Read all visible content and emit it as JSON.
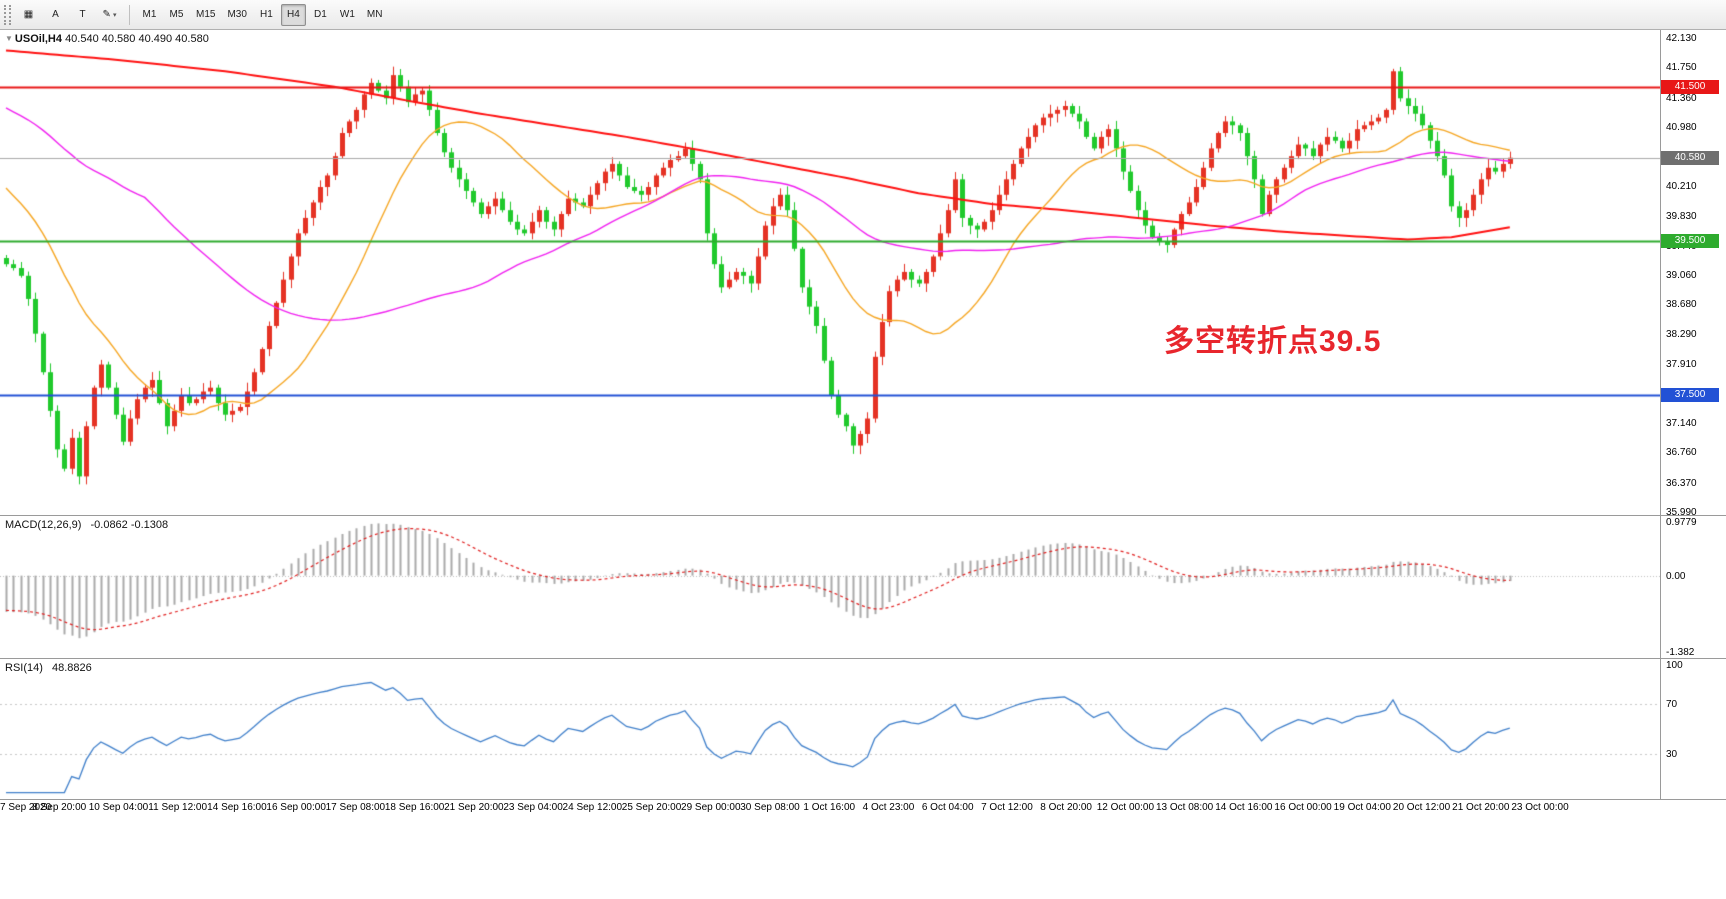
{
  "toolbar": {
    "tools": [
      {
        "name": "charts-grid-icon",
        "glyph": "▦"
      },
      {
        "name": "arrow-tool-button",
        "glyph": "A"
      },
      {
        "name": "text-tool-button",
        "glyph": "T"
      },
      {
        "name": "draw-tool-button",
        "glyph": "✎",
        "caret": true
      }
    ],
    "timeframes": [
      "M1",
      "M5",
      "M15",
      "M30",
      "H1",
      "H4",
      "D1",
      "W1",
      "MN"
    ],
    "active_timeframe": "H4"
  },
  "chart": {
    "symbol": "USOil,H4",
    "ohlc_text": "40.540 40.580 40.490 40.580",
    "annotation": {
      "text": "多空转折点39.5",
      "color": "#e8262d"
    },
    "levels": [
      {
        "label": "41.500",
        "price": 41.5,
        "color": "#e81717"
      },
      {
        "label": "39.500",
        "price": 39.5,
        "color": "#2eab2e"
      },
      {
        "label": "37.500",
        "price": 37.5,
        "color": "#2251d5"
      }
    ],
    "current_price": {
      "label": "40.580",
      "value": 40.58,
      "color": "#6f6f6f"
    },
    "axis_ticks": [
      "42.130",
      "41.750",
      "41.360",
      "40.980",
      "40.210",
      "39.830",
      "39.440",
      "39.060",
      "38.680",
      "38.290",
      "37.910",
      "37.140",
      "36.760",
      "36.370",
      "35.990"
    ],
    "price_range": {
      "max": 42.235,
      "min": 35.95
    }
  },
  "chart_data": {
    "type": "candlestick",
    "symbol": "USOil",
    "timeframe": "H4",
    "closes": [
      39.2,
      39.15,
      39.05,
      38.75,
      38.3,
      37.8,
      37.3,
      36.8,
      36.55,
      36.95,
      36.45,
      37.1,
      37.6,
      37.9,
      37.6,
      37.25,
      36.9,
      37.2,
      37.45,
      37.6,
      37.7,
      37.4,
      37.1,
      37.3,
      37.5,
      37.4,
      37.45,
      37.55,
      37.6,
      37.4,
      37.25,
      37.3,
      37.35,
      37.55,
      37.8,
      38.1,
      38.4,
      38.7,
      39.0,
      39.3,
      39.6,
      39.8,
      40.0,
      40.2,
      40.35,
      40.6,
      40.9,
      41.05,
      41.2,
      41.4,
      41.55,
      41.45,
      41.35,
      41.65,
      41.5,
      41.3,
      41.4,
      41.45,
      41.2,
      40.9,
      40.65,
      40.45,
      40.3,
      40.15,
      40.0,
      39.85,
      39.95,
      40.05,
      39.9,
      39.75,
      39.65,
      39.6,
      39.75,
      39.9,
      39.75,
      39.65,
      39.85,
      40.05,
      40.0,
      39.95,
      40.1,
      40.25,
      40.4,
      40.5,
      40.35,
      40.2,
      40.15,
      40.1,
      40.2,
      40.35,
      40.45,
      40.55,
      40.6,
      40.7,
      40.5,
      40.3,
      39.6,
      39.2,
      38.9,
      39.0,
      39.1,
      39.05,
      38.95,
      39.3,
      39.7,
      39.95,
      40.1,
      39.9,
      39.4,
      38.9,
      38.65,
      38.4,
      37.95,
      37.5,
      37.25,
      37.1,
      36.85,
      37.0,
      37.2,
      38.0,
      38.45,
      38.85,
      39.0,
      39.1,
      39.0,
      38.95,
      39.1,
      39.3,
      39.6,
      39.9,
      40.3,
      39.8,
      39.7,
      39.65,
      39.75,
      39.9,
      40.1,
      40.3,
      40.5,
      40.7,
      40.85,
      41.0,
      41.1,
      41.15,
      41.2,
      41.25,
      41.15,
      41.05,
      40.85,
      40.7,
      40.85,
      40.95,
      40.7,
      40.4,
      40.15,
      39.9,
      39.7,
      39.55,
      39.5,
      39.45,
      39.65,
      39.85,
      40.0,
      40.2,
      40.45,
      40.7,
      40.9,
      41.05,
      41.0,
      40.9,
      40.6,
      40.3,
      39.85,
      40.1,
      40.3,
      40.45,
      40.6,
      40.75,
      40.7,
      40.6,
      40.75,
      40.85,
      40.8,
      40.7,
      40.8,
      40.95,
      41.0,
      41.05,
      41.1,
      41.2,
      41.7,
      41.35,
      41.25,
      41.15,
      41.0,
      40.8,
      40.6,
      40.35,
      39.95,
      39.8,
      39.9,
      40.1,
      40.3,
      40.45,
      40.4,
      40.5,
      40.58
    ],
    "ma_red_anchors": [
      [
        0,
        41.97
      ],
      [
        15,
        41.85
      ],
      [
        30,
        41.7
      ],
      [
        45,
        41.5
      ],
      [
        55,
        41.32
      ],
      [
        65,
        41.15
      ],
      [
        75,
        41.0
      ],
      [
        85,
        40.85
      ],
      [
        95,
        40.68
      ],
      [
        105,
        40.5
      ],
      [
        115,
        40.32
      ],
      [
        125,
        40.12
      ],
      [
        135,
        39.98
      ],
      [
        145,
        39.9
      ],
      [
        155,
        39.8
      ],
      [
        165,
        39.7
      ],
      [
        175,
        39.62
      ],
      [
        185,
        39.56
      ],
      [
        192,
        39.52
      ],
      [
        198,
        39.55
      ],
      [
        206,
        39.68
      ]
    ],
    "indicator_periods": {
      "ma_orange": 20,
      "ma_magenta": 60
    },
    "colors": {
      "up": "#e53224",
      "down": "#20c92c",
      "ma_red": "#ff1010",
      "ma_orange": "#f5a623",
      "ma_magenta": "#f020f0",
      "macd_hist": "#ababab",
      "macd_signal": "#e02020",
      "rsi_line": "#3f7fca"
    }
  },
  "macd": {
    "label": "MACD(12,26,9)",
    "values": "-0.0862 -0.1308",
    "axis": [
      {
        "label": "0.9779",
        "value": 0.9779
      },
      {
        "label": "0.00",
        "value": 0
      },
      {
        "label": "-1.382",
        "value": -1.382
      }
    ],
    "range": {
      "max": 1.05,
      "min": -1.45
    }
  },
  "rsi": {
    "label": "RSI(14)",
    "value": "48.8826",
    "axis": [
      {
        "label": "100",
        "value": 100
      },
      {
        "label": "70",
        "value": 70
      },
      {
        "label": "30",
        "value": 30
      }
    ],
    "levels": [
      70,
      30
    ],
    "range": {
      "max": 105,
      "min": -5
    }
  },
  "time_axis": {
    "labels": [
      "7 Sep 2020",
      "8 Sep 20:00",
      "10 Sep 04:00",
      "11 Sep 12:00",
      "14 Sep 16:00",
      "16 Sep 00:00",
      "17 Sep 08:00",
      "18 Sep 16:00",
      "21 Sep 20:00",
      "23 Sep 04:00",
      "24 Sep 12:00",
      "25 Sep 20:00",
      "29 Sep 00:00",
      "30 Sep 08:00",
      "1 Oct 16:00",
      "4 Oct 23:00",
      "6 Oct 04:00",
      "7 Oct 12:00",
      "8 Oct 20:00",
      "12 Oct 00:00",
      "13 Oct 08:00",
      "14 Oct 16:00",
      "16 Oct 00:00",
      "19 Oct 04:00",
      "20 Oct 12:00",
      "21 Oct 20:00",
      "23 Oct 00:00"
    ]
  }
}
